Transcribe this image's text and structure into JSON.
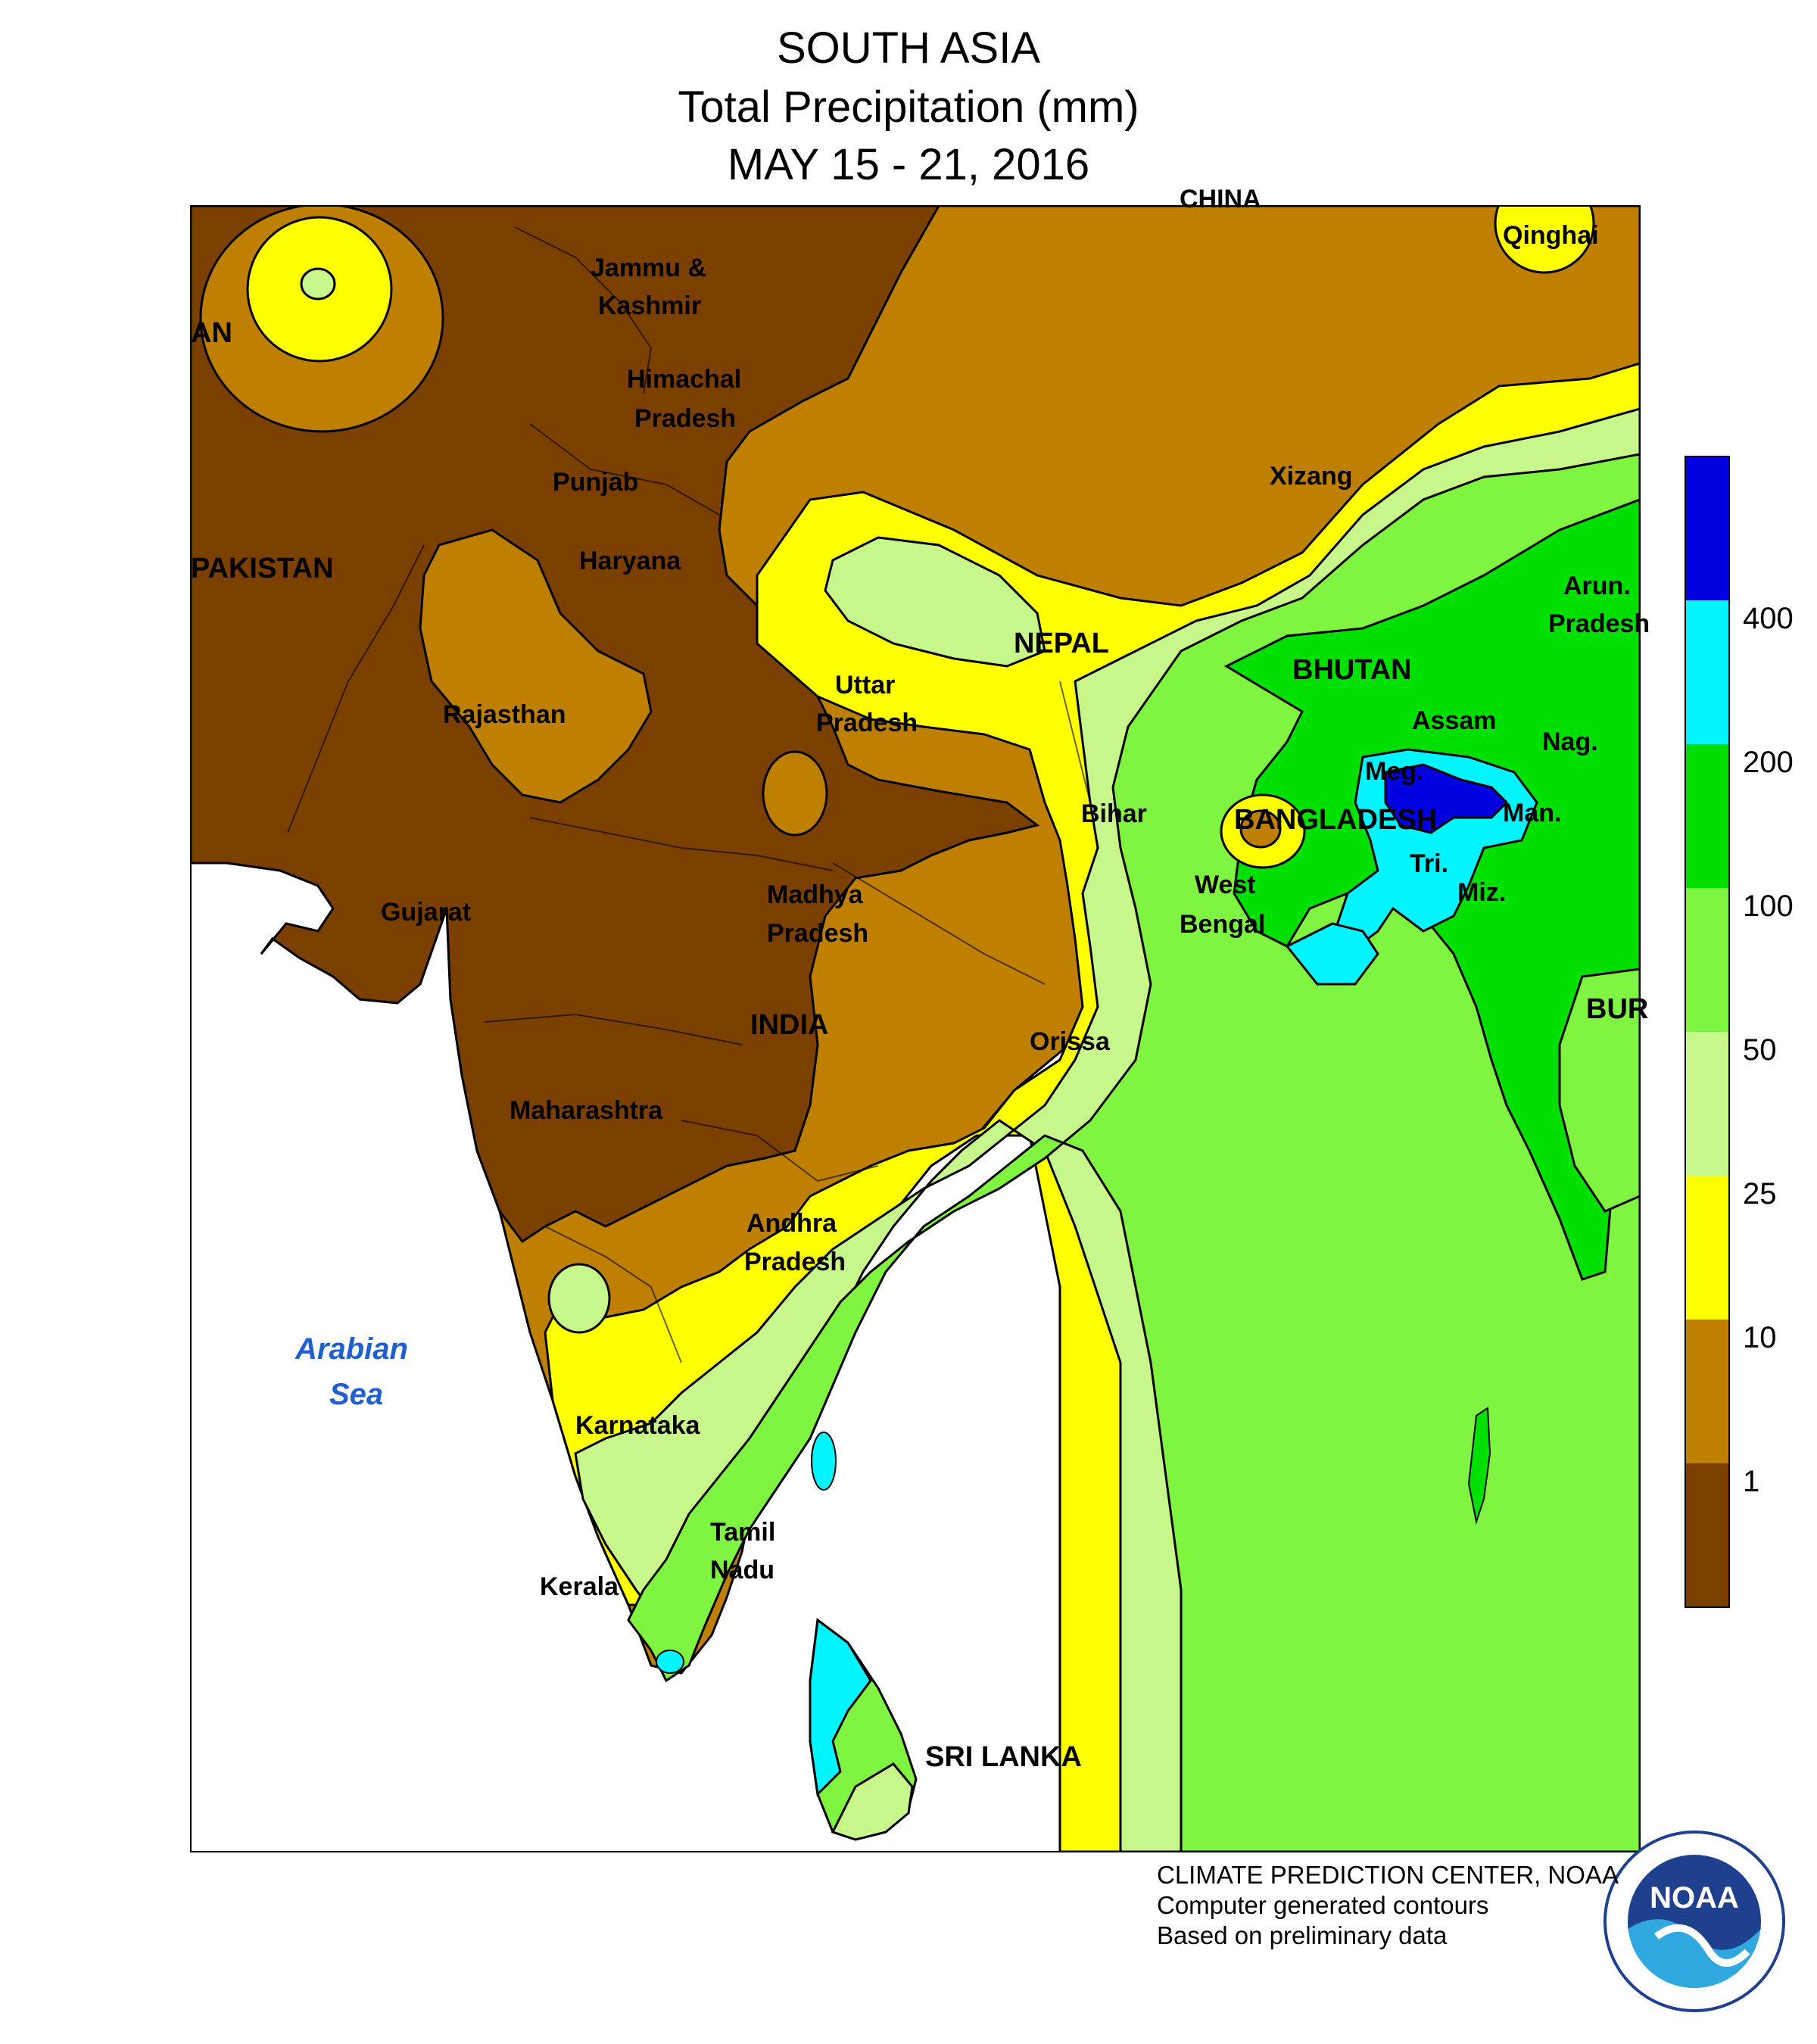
{
  "title": {
    "line1": "SOUTH ASIA",
    "line2": "Total Precipitation (mm)",
    "line3": "MAY 15 - 21, 2016"
  },
  "colors": {
    "lt1": "#7b3f00",
    "1to10": "#bf7f00",
    "10to25": "#ffff00",
    "25to50": "#c7f78a",
    "50to100": "#7ff542",
    "100to200": "#00e000",
    "200to400": "#00f5ff",
    "gt400": "#0000e0"
  },
  "legend": {
    "thresholds": [
      "400",
      "200",
      "100",
      "50",
      "25",
      "10",
      "1"
    ]
  },
  "labels": {
    "pakistan": "PAKISTAN",
    "afghanistan_partial": "AN",
    "jammu1": "Jammu &",
    "jammu2": "Kashmir",
    "himachal1": "Himachal",
    "himachal2": "Pradesh",
    "punjab": "Punjab",
    "haryana": "Haryana",
    "rajasthan": "Rajasthan",
    "gujarat": "Gujarat",
    "maharashtra": "Maharashtra",
    "madhya1": "Madhya",
    "madhya2": "Pradesh",
    "india": "INDIA",
    "uttar1": "Uttar",
    "uttar2": "Pradesh",
    "nepal": "NEPAL",
    "bihar": "Bihar",
    "china_partial": "CHINA",
    "qinghai": "Qinghai",
    "xizang": "Xizang",
    "bhutan": "BHUTAN",
    "arun1": "Arun.",
    "arun2": "Pradesh",
    "assam": "Assam",
    "nag": "Nag.",
    "meg": "Meg.",
    "man": "Man.",
    "bangladesh": "BANGLADESH",
    "tri": "Tri.",
    "miz": "Miz.",
    "west1": "West",
    "west2": "Bengal",
    "orissa": "Orissa",
    "burma_partial": "BUR",
    "andhra1": "Andhra",
    "andhra2": "Pradesh",
    "karnataka": "Karnataka",
    "tamil1": "Tamil",
    "tamil2": "Nadu",
    "kerala": "Kerala",
    "srilanka": "SRI LANKA",
    "sea1": "Arabian",
    "sea2": "Sea"
  },
  "credits": {
    "line1": "CLIMATE PREDICTION CENTER, NOAA",
    "line2": "Computer generated contours",
    "line3": "Based on preliminary data"
  },
  "logo_text": "NOAA"
}
